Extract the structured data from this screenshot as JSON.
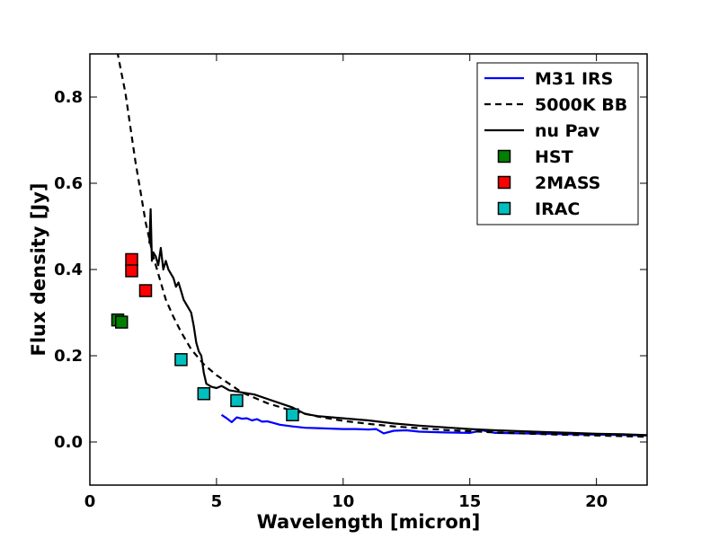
{
  "chart_data": {
    "type": "line",
    "xlabel": "Wavelength [micron]",
    "ylabel": "Flux density [Jy]",
    "xlim": [
      0,
      22
    ],
    "ylim": [
      -0.1,
      0.9
    ],
    "xticks": [
      0,
      5,
      10,
      15,
      20
    ],
    "yticks": [
      0.0,
      0.2,
      0.4,
      0.6,
      0.8
    ],
    "xtick_labels": [
      "0",
      "5",
      "10",
      "15",
      "20"
    ],
    "ytick_labels": [
      "0.0",
      "0.2",
      "0.4",
      "0.6",
      "0.8"
    ],
    "grid": false,
    "legend_position": "top-right",
    "series": [
      {
        "name": "M31 IRS",
        "kind": "line",
        "color": "#0000ff",
        "dash": "solid",
        "x": [
          5.2,
          5.4,
          5.6,
          5.8,
          6.0,
          6.2,
          6.4,
          6.6,
          6.8,
          7.0,
          7.2,
          7.5,
          8.0,
          8.5,
          9.0,
          9.5,
          10.0,
          10.5,
          11.0,
          11.3,
          11.6,
          12.0,
          12.5,
          13.0,
          14.0,
          15.0,
          15.5,
          16.0,
          17.0,
          18.0,
          19.0,
          20.0,
          21.0,
          22.0
        ],
        "y": [
          0.063,
          0.055,
          0.046,
          0.057,
          0.054,
          0.055,
          0.05,
          0.053,
          0.047,
          0.048,
          0.045,
          0.04,
          0.036,
          0.033,
          0.032,
          0.031,
          0.03,
          0.03,
          0.029,
          0.03,
          0.02,
          0.026,
          0.027,
          0.024,
          0.022,
          0.021,
          0.027,
          0.021,
          0.02,
          0.019,
          0.018,
          0.017,
          0.016,
          0.015
        ]
      },
      {
        "name": "5000K BB",
        "kind": "line",
        "color": "#000000",
        "dash": "dashed",
        "x": [
          1.0,
          1.2,
          1.4,
          1.6,
          1.8,
          2.0,
          2.2,
          2.5,
          2.8,
          3.0,
          3.3,
          3.6,
          4.0,
          4.5,
          5.0,
          5.5,
          6.0,
          7.0,
          8.0,
          9.0,
          10.0,
          11.0,
          12.0,
          14.0,
          16.0,
          18.0,
          20.0,
          22.0
        ],
        "y": [
          0.93,
          0.87,
          0.81,
          0.73,
          0.65,
          0.58,
          0.51,
          0.43,
          0.37,
          0.33,
          0.29,
          0.255,
          0.215,
          0.18,
          0.155,
          0.135,
          0.115,
          0.09,
          0.072,
          0.059,
          0.049,
          0.042,
          0.036,
          0.028,
          0.022,
          0.018,
          0.015,
          0.012
        ]
      },
      {
        "name": "nu Pav",
        "kind": "line",
        "color": "#000000",
        "dash": "solid",
        "x": [
          2.35,
          2.4,
          2.45,
          2.5,
          2.6,
          2.7,
          2.8,
          2.9,
          3.0,
          3.1,
          3.2,
          3.3,
          3.4,
          3.5,
          3.6,
          3.7,
          3.8,
          3.9,
          4.0,
          4.1,
          4.2,
          4.3,
          4.4,
          4.5,
          4.6,
          4.8,
          5.0,
          5.2,
          5.5,
          6.0,
          6.5,
          7.0,
          7.5,
          8.0,
          8.5,
          9.0,
          10.0,
          11.0,
          12.0,
          13.0,
          14.0,
          15.0,
          16.0,
          17.0,
          18.0,
          19.0,
          20.0,
          21.0,
          22.0
        ],
        "y": [
          0.46,
          0.54,
          0.42,
          0.44,
          0.43,
          0.41,
          0.45,
          0.4,
          0.42,
          0.4,
          0.39,
          0.38,
          0.36,
          0.37,
          0.35,
          0.33,
          0.32,
          0.31,
          0.3,
          0.27,
          0.23,
          0.21,
          0.2,
          0.16,
          0.135,
          0.128,
          0.125,
          0.13,
          0.12,
          0.115,
          0.11,
          0.1,
          0.09,
          0.08,
          0.065,
          0.06,
          0.055,
          0.05,
          0.043,
          0.038,
          0.034,
          0.03,
          0.027,
          0.025,
          0.023,
          0.021,
          0.019,
          0.018,
          0.016
        ]
      },
      {
        "name": "HST",
        "kind": "marker",
        "color": "#008000",
        "x": [
          1.1,
          1.25
        ],
        "y": [
          0.283,
          0.278
        ]
      },
      {
        "name": "2MASS",
        "kind": "marker",
        "color": "#ff0000",
        "x": [
          1.65,
          1.65,
          2.2
        ],
        "y": [
          0.423,
          0.397,
          0.351
        ]
      },
      {
        "name": "IRAC",
        "kind": "marker",
        "color": "#00bfbf",
        "x": [
          3.6,
          4.5,
          5.8,
          8.0
        ],
        "y": [
          0.191,
          0.112,
          0.096,
          0.063
        ]
      }
    ]
  }
}
